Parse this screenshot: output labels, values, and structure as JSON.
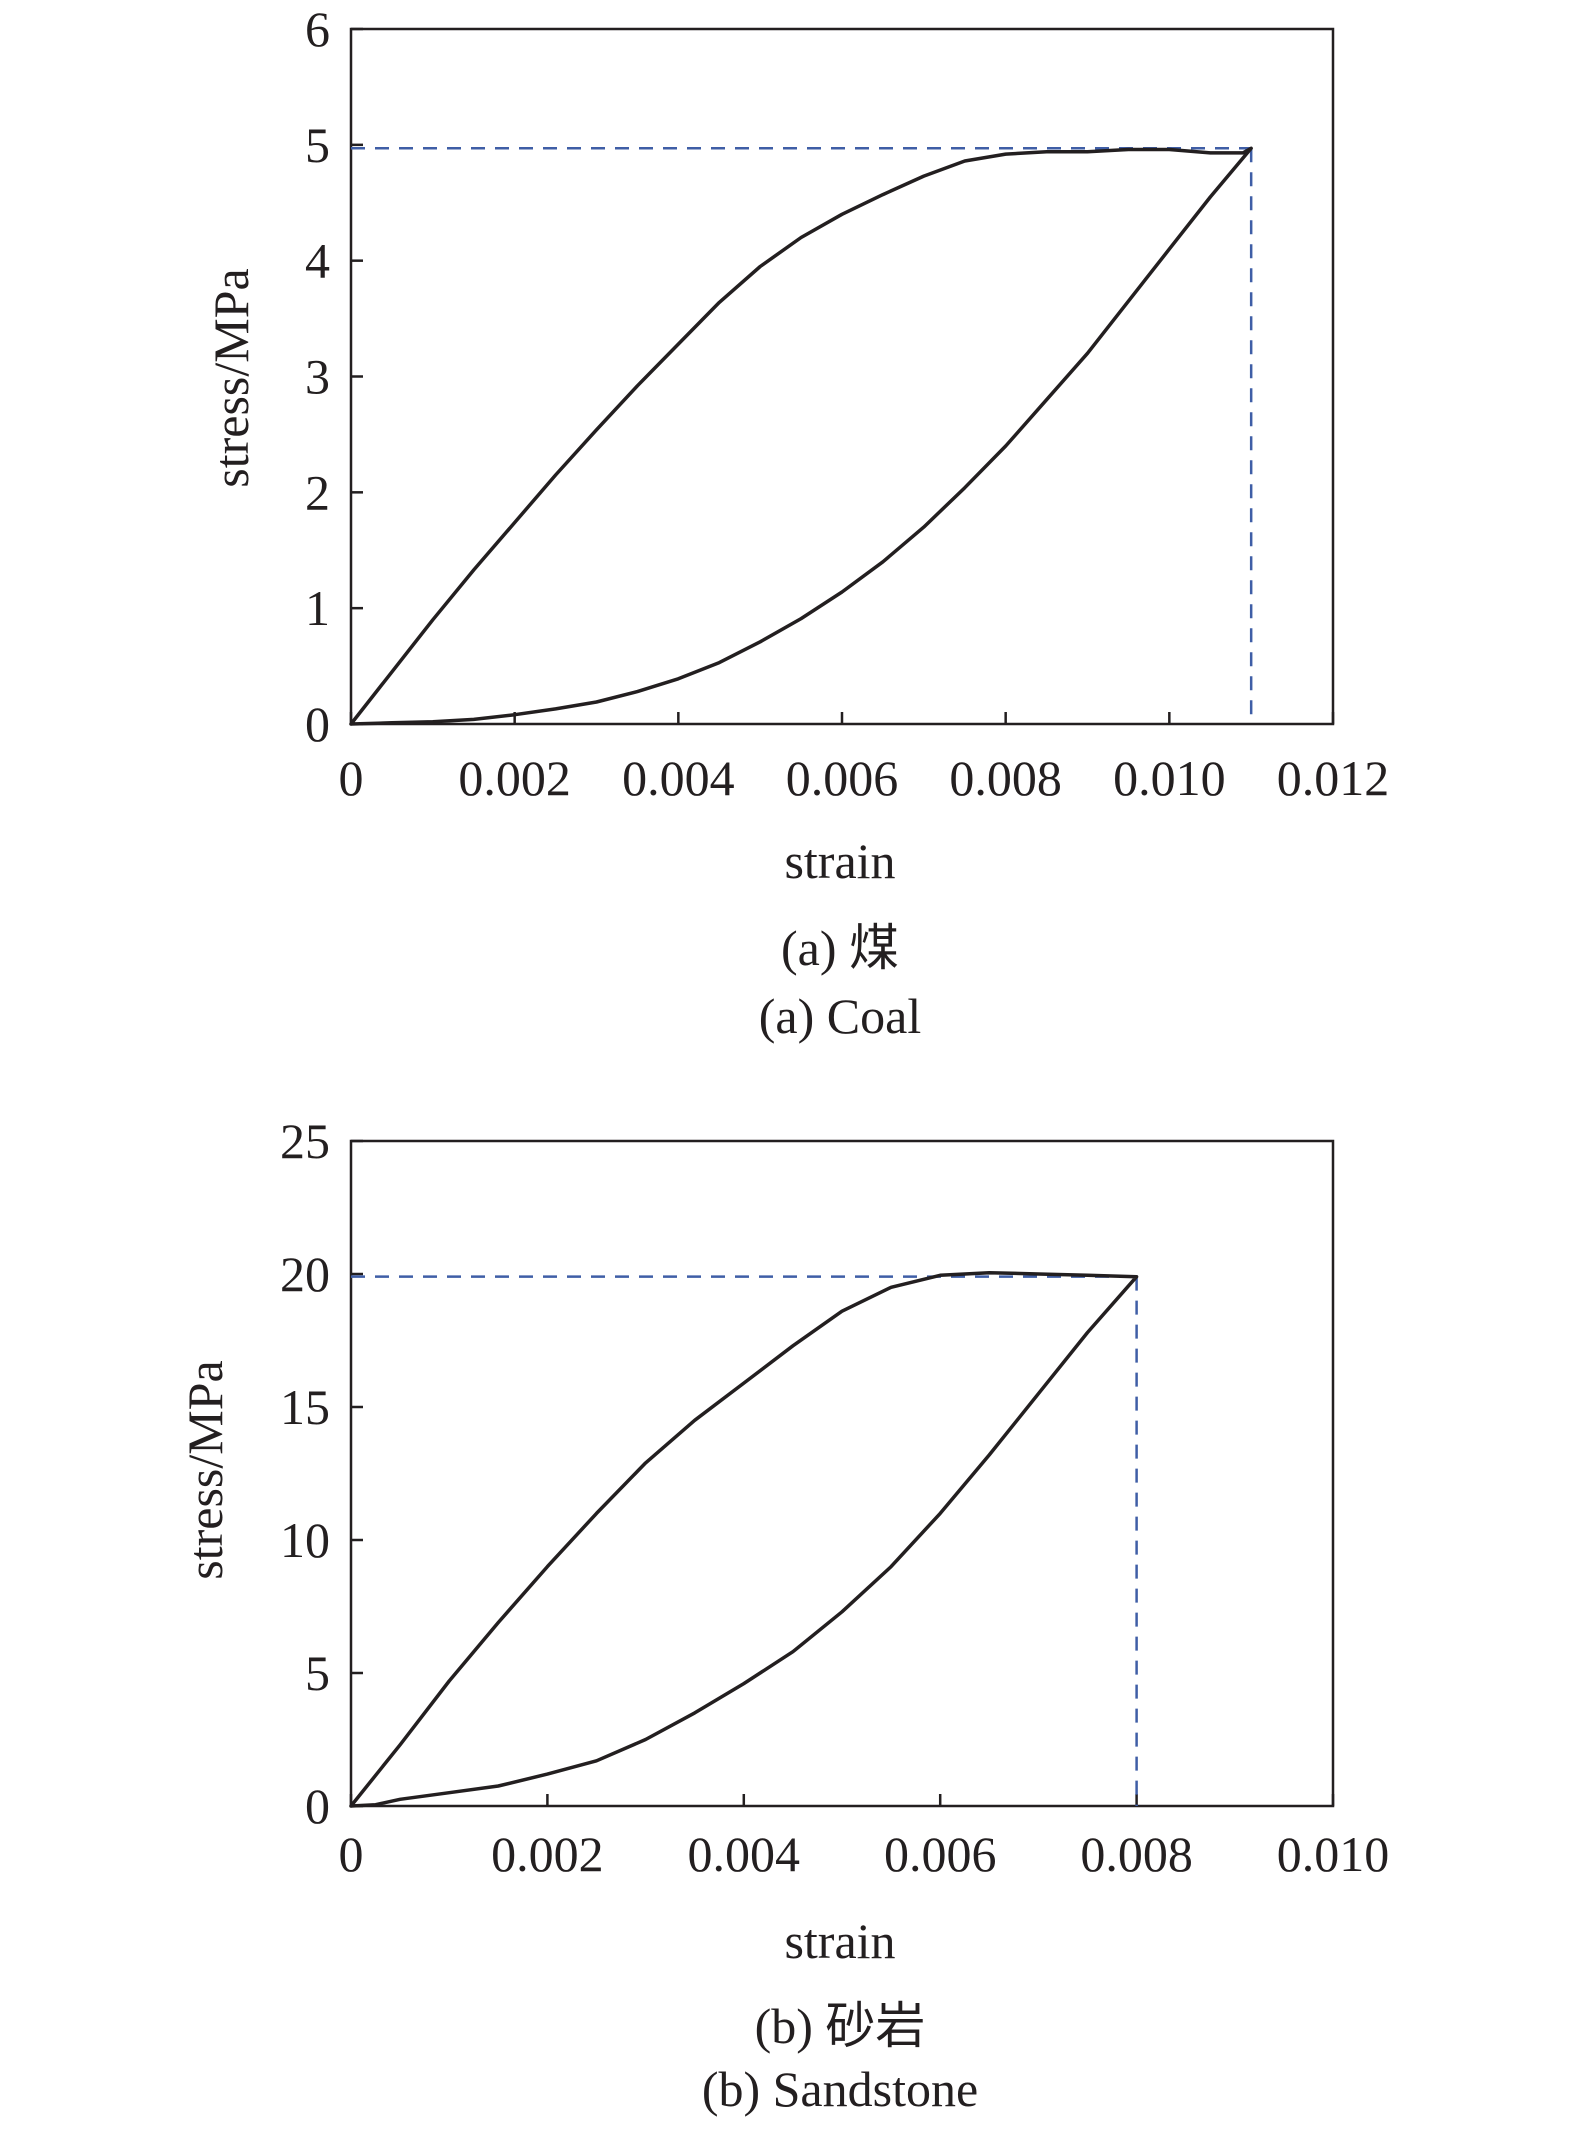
{
  "chart_data": [
    {
      "type": "line",
      "caption_cn": "(a) 煤",
      "caption_en": "(a) Coal",
      "xlabel": "strain",
      "ylabel": "stress/MPa",
      "xlim": [
        0,
        0.012
      ],
      "ylim": [
        0,
        6
      ],
      "x_ticks": [
        0,
        0.002,
        0.004,
        0.006,
        0.008,
        0.01,
        0.012
      ],
      "x_tick_labels": [
        "0",
        "0.002",
        "0.004",
        "0.006",
        "0.008",
        "0.010",
        "0.012"
      ],
      "y_ticks": [
        0,
        1,
        2,
        3,
        4,
        5,
        6
      ],
      "y_tick_labels": [
        "0",
        "1",
        "2",
        "3",
        "4",
        "5",
        "6"
      ],
      "grid": false,
      "peak": {
        "strain": 0.011,
        "stress": 4.97
      },
      "series": [
        {
          "points": [
            [
              0,
              0
            ],
            [
              0.0005,
              0.45
            ],
            [
              0.001,
              0.9
            ],
            [
              0.0015,
              1.33
            ],
            [
              0.002,
              1.74
            ],
            [
              0.0025,
              2.15
            ],
            [
              0.003,
              2.54
            ],
            [
              0.0035,
              2.92
            ],
            [
              0.004,
              3.28
            ],
            [
              0.0045,
              3.64
            ],
            [
              0.005,
              3.95
            ],
            [
              0.0055,
              4.2
            ],
            [
              0.006,
              4.4
            ],
            [
              0.0065,
              4.57
            ],
            [
              0.007,
              4.73
            ],
            [
              0.0075,
              4.86
            ],
            [
              0.008,
              4.92
            ],
            [
              0.0085,
              4.94
            ],
            [
              0.009,
              4.94
            ],
            [
              0.0095,
              4.96
            ],
            [
              0.01,
              4.96
            ],
            [
              0.0105,
              4.93
            ],
            [
              0.0109,
              4.93
            ],
            [
              0.011,
              4.97
            ],
            [
              0.0105,
              4.55
            ],
            [
              0.01,
              4.1
            ],
            [
              0.0095,
              3.65
            ],
            [
              0.009,
              3.2
            ],
            [
              0.0085,
              2.8
            ],
            [
              0.008,
              2.4
            ],
            [
              0.0075,
              2.04
            ],
            [
              0.007,
              1.7
            ],
            [
              0.0065,
              1.4
            ],
            [
              0.006,
              1.14
            ],
            [
              0.0055,
              0.91
            ],
            [
              0.005,
              0.71
            ],
            [
              0.0045,
              0.53
            ],
            [
              0.004,
              0.39
            ],
            [
              0.0035,
              0.28
            ],
            [
              0.003,
              0.19
            ],
            [
              0.0025,
              0.13
            ],
            [
              0.002,
              0.08
            ],
            [
              0.0015,
              0.04
            ],
            [
              0.001,
              0.02
            ],
            [
              0.0005,
              0.01
            ],
            [
              0,
              0
            ]
          ]
        }
      ]
    },
    {
      "type": "line",
      "caption_cn": "(b) 砂岩",
      "caption_en": "(b) Sandstone",
      "xlabel": "strain",
      "ylabel": "stress/MPa",
      "xlim": [
        0,
        0.01
      ],
      "ylim": [
        0,
        25
      ],
      "x_ticks": [
        0,
        0.002,
        0.004,
        0.006,
        0.008,
        0.01
      ],
      "x_tick_labels": [
        "0",
        "0.002",
        "0.004",
        "0.006",
        "0.008",
        "0.010"
      ],
      "y_ticks": [
        0,
        5,
        10,
        15,
        20,
        25
      ],
      "y_tick_labels": [
        "0",
        "5",
        "10",
        "15",
        "20",
        "25"
      ],
      "grid": false,
      "peak": {
        "strain": 0.008,
        "stress": 19.9
      },
      "series": [
        {
          "points": [
            [
              0,
              0
            ],
            [
              0.0005,
              2.3
            ],
            [
              0.001,
              4.7
            ],
            [
              0.0015,
              6.9
            ],
            [
              0.002,
              9.0
            ],
            [
              0.0025,
              11.0
            ],
            [
              0.003,
              12.9
            ],
            [
              0.0035,
              14.5
            ],
            [
              0.004,
              15.9
            ],
            [
              0.0045,
              17.3
            ],
            [
              0.005,
              18.6
            ],
            [
              0.0055,
              19.5
            ],
            [
              0.006,
              19.95
            ],
            [
              0.0065,
              20.05
            ],
            [
              0.007,
              20.0
            ],
            [
              0.0075,
              19.95
            ],
            [
              0.008,
              19.9
            ],
            [
              0.0075,
              17.8
            ],
            [
              0.007,
              15.5
            ],
            [
              0.0065,
              13.2
            ],
            [
              0.006,
              11.0
            ],
            [
              0.0055,
              9.0
            ],
            [
              0.005,
              7.3
            ],
            [
              0.0045,
              5.8
            ],
            [
              0.004,
              4.6
            ],
            [
              0.0035,
              3.5
            ],
            [
              0.003,
              2.5
            ],
            [
              0.0025,
              1.7
            ],
            [
              0.002,
              1.2
            ],
            [
              0.0015,
              0.75
            ],
            [
              0.001,
              0.5
            ],
            [
              0.0005,
              0.25
            ],
            [
              0.00025,
              0.05
            ],
            [
              0,
              0
            ]
          ]
        }
      ]
    }
  ],
  "colors": {
    "curve": "#231f20",
    "guide": "#3f5ea6",
    "axes": "#231f20"
  }
}
